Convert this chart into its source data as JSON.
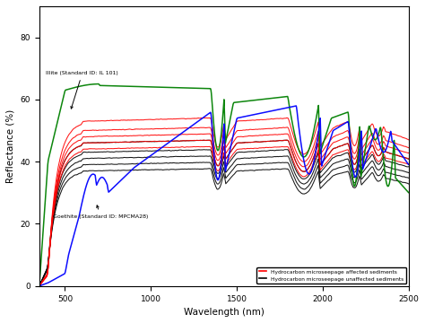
{
  "xlabel": "Wavelength (nm)",
  "ylabel": "Reflectance (%)",
  "xlim": [
    350,
    2500
  ],
  "ylim": [
    0,
    90
  ],
  "yticks": [
    0,
    20,
    40,
    60,
    80
  ],
  "xticks": [
    500,
    1000,
    1500,
    2000,
    2500
  ],
  "bg_color": "#ffffff",
  "border_color": "#000000",
  "illite_label": "Illite (Standard ID: IL 101)",
  "goethite_label": "Goethite (Standard ID: MPCMA28)",
  "legend_red": "Hydrocarbon microseepage affected sediments",
  "legend_black": "Hydrocarbon microseepage unaffected sediments",
  "red_bases": [
    53,
    50,
    48,
    46,
    44
  ],
  "black_bases": [
    46,
    43,
    41,
    39,
    37
  ]
}
